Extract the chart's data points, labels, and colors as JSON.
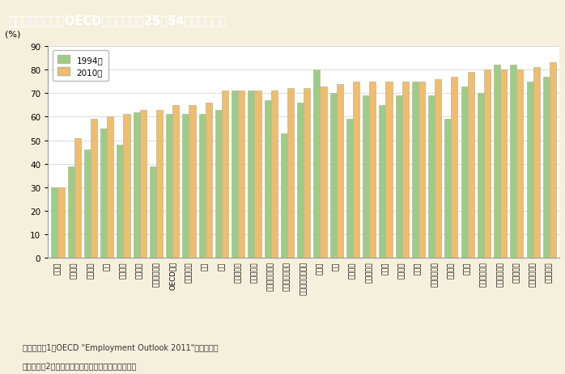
{
  "title": "第１－２－４図　OECD諸国の女性（25～54歳）の就業率",
  "ylabel": "(%)",
  "ylim": [
    0,
    90
  ],
  "yticks": [
    0,
    10,
    20,
    30,
    40,
    50,
    60,
    70,
    80,
    90
  ],
  "x_labels": [
    "トルコ",
    "メキシコ",
    "イタリア",
    "韓国",
    "ギリシャ",
    "スペイン",
    "アイスランド",
    "OECD平均",
    "ハンガリー",
    "日本",
    "米国",
    "スロバキア",
    "ポーランド",
    "オーストラリア",
    "ルクセンブルク",
    "ニュージーランド",
    "チェコ",
    "英国",
    "ベルギー",
    "ポルトガル",
    "ドイツ",
    "フランス",
    "カナダ",
    "フィンランド",
    "オランダ",
    "スイス",
    "オーストリア",
    "アイスランド",
    "デンマーク",
    "スウェーデン",
    "ノルウェー"
  ],
  "values_1994": [
    30,
    39,
    46,
    55,
    48,
    62,
    39,
    61,
    61,
    61,
    63,
    71,
    71,
    67,
    53,
    66,
    80,
    70,
    59,
    69,
    65,
    69,
    75,
    69,
    59,
    73,
    70,
    82,
    82,
    75,
    77
  ],
  "values_2010": [
    30,
    51,
    59,
    60,
    61,
    63,
    63,
    65,
    65,
    66,
    71,
    71,
    71,
    71,
    72,
    72,
    73,
    74,
    75,
    75,
    75,
    75,
    75,
    76,
    77,
    79,
    80,
    80,
    80,
    81,
    83
  ],
  "color_1994": "#9dcc88",
  "color_2010": "#f0bc6e",
  "bar_edge_color": "#b8b890",
  "legend_labels": [
    "1994年",
    "2010年"
  ],
  "note1": "（備考）　1．OECD \"Employment Outlook 2011\"より作成。",
  "note2": "　　　　　2．就業率は「就業者数／人口」で計算。",
  "title_bg_color": "#8b7355",
  "title_text_color": "#ffffff",
  "bg_color": "#f5f0dc",
  "plot_bg_color": "#ffffff"
}
